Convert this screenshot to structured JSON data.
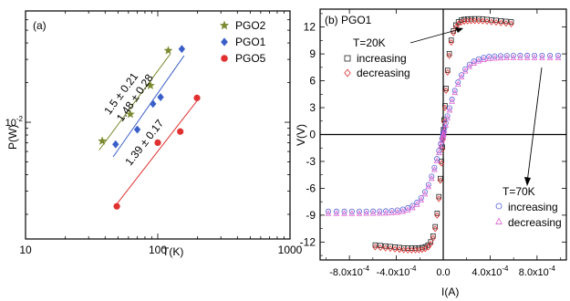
{
  "chart_data": [
    {
      "panel_label": "(a)",
      "type": "scatter",
      "xscale": "log",
      "yscale": "log",
      "xlim": [
        10,
        1000
      ],
      "ylim": [
        0.0013,
        0.07
      ],
      "xlabel": "T(K)",
      "ylabel": "P(W)",
      "x_ticks": [
        "10",
        "100",
        "1000"
      ],
      "y_ticks": [
        "10^-2"
      ],
      "legend_position": "top-right",
      "series": [
        {
          "name": "PGO2",
          "color": "#7a8a2e",
          "marker": "star",
          "x": [
            38,
            62,
            88,
            120
          ],
          "y": [
            0.0072,
            0.0115,
            0.019,
            0.035
          ],
          "fit_label": "1.5 ± 0.21",
          "fit_x": [
            36,
            124
          ]
        },
        {
          "name": "PGO1",
          "color": "#3a5fc8",
          "marker": "diamond",
          "x": [
            48,
            70,
            92,
            105,
            152
          ],
          "y": [
            0.0068,
            0.0088,
            0.0138,
            0.0155,
            0.036
          ],
          "fit_label": "1.48 ± 0.28",
          "fit_x": [
            46,
            158
          ]
        },
        {
          "name": "PGO5",
          "color": "#e03030",
          "marker": "circle",
          "x": [
            49,
            100,
            148,
            198
          ],
          "y": [
            0.0023,
            0.007,
            0.0085,
            0.0153
          ],
          "fit_label": "1.39 ± 0.17",
          "fit_x": [
            49,
            203
          ]
        }
      ]
    },
    {
      "panel_label": "(b)",
      "title": "PGO1",
      "type": "scatter",
      "xlim": [
        -0.00105,
        0.00105
      ],
      "ylim": [
        -14,
        14
      ],
      "xlabel": "I(A)",
      "ylabel": "V(V)",
      "x_ticks": [
        "-8.0x10^-4",
        "-4.0x10^-4",
        "0.0",
        "4.0x10^-4",
        "8.0x10^-4"
      ],
      "y_ticks": [
        "-12",
        "-9",
        "-6",
        "-3",
        "0",
        "3",
        "6",
        "9",
        "12"
      ],
      "groups": [
        {
          "temperature": "T=20K",
          "isat": 0.00058,
          "vmax": 12.8,
          "scale": 6e-05,
          "series": [
            {
              "name": "increasing",
              "marker": "square",
              "color": "#222222"
            },
            {
              "name": "decreasing",
              "marker": "diamond",
              "color": "#e03030"
            }
          ]
        },
        {
          "temperature": "T=70K",
          "isat": 0.00098,
          "vmax": 8.7,
          "scale": 0.00016,
          "series": [
            {
              "name": "increasing",
              "marker": "circle",
              "color": "#5560d8"
            },
            {
              "name": "decreasing",
              "marker": "triangle",
              "color": "#e060d0"
            }
          ]
        }
      ]
    }
  ]
}
